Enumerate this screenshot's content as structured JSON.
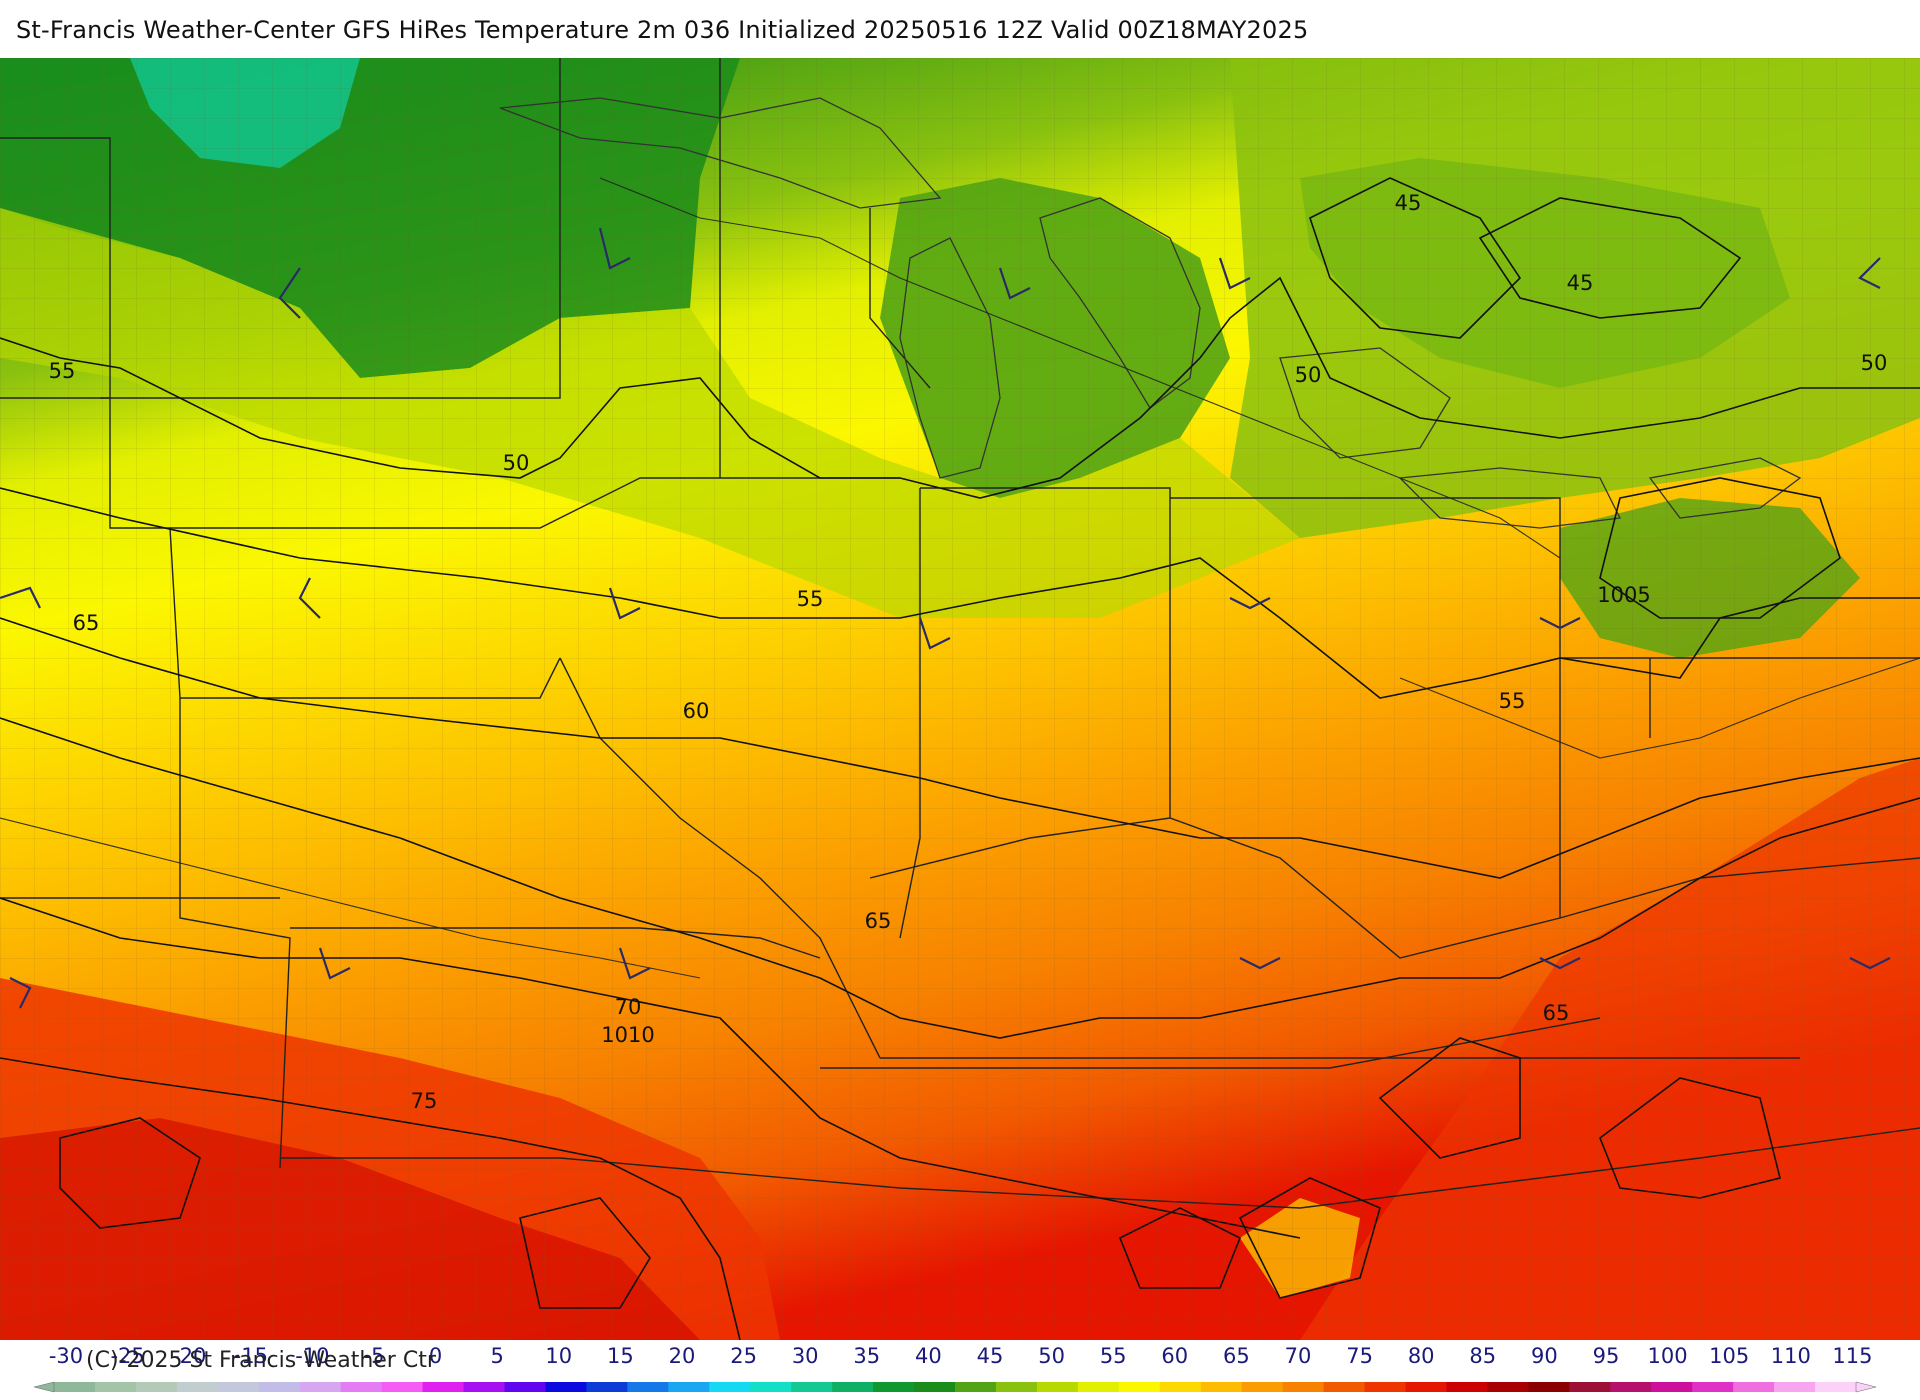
{
  "title": "St-Francis Weather-Center GFS HiRes Temperature 2m  036 Initialized 20250516 12Z Valid 00Z18MAY2025",
  "copyright": "(C)-2025 St Francis Weather Ctr",
  "contour_labels": [
    "45",
    "45",
    "50",
    "50",
    "50",
    "55",
    "55",
    "55",
    "60",
    "65",
    "65",
    "65",
    "70",
    "75",
    "1005",
    "1010"
  ],
  "legend": {
    "ticks": [
      "-30",
      "-25",
      "-20",
      "-15",
      "-10",
      "-5",
      "0",
      "5",
      "10",
      "15",
      "20",
      "25",
      "30",
      "35",
      "40",
      "45",
      "50",
      "55",
      "60",
      "65",
      "70",
      "75",
      "80",
      "85",
      "90",
      "95",
      "100",
      "105",
      "110",
      "115"
    ],
    "colors": [
      "#8fb89a",
      "#a4c4a8",
      "#b4cab8",
      "#c2cdd0",
      "#c4c8dd",
      "#c2bde8",
      "#d6a7f0",
      "#e47df3",
      "#f55cf5",
      "#e01ff1",
      "#a70ff2",
      "#5f05f0",
      "#0a0ae0",
      "#0b3cd8",
      "#1478e8",
      "#1aa6f2",
      "#15d8f2",
      "#11e0c6",
      "#12c893",
      "#0fb064",
      "#0f982f",
      "#1a8c1a",
      "#52a414",
      "#89c10f",
      "#b8d900",
      "#e2ef00",
      "#fbf700",
      "#fdd900",
      "#fdbc00",
      "#fb9d00",
      "#f78100",
      "#f25a00",
      "#ee3500",
      "#e61500",
      "#cc0000",
      "#a80000",
      "#8a0000",
      "#9c1038",
      "#b4106c",
      "#cc109c",
      "#e031c6",
      "#ef6ee0",
      "#f7a5ef",
      "#fbd1f8"
    ]
  }
}
